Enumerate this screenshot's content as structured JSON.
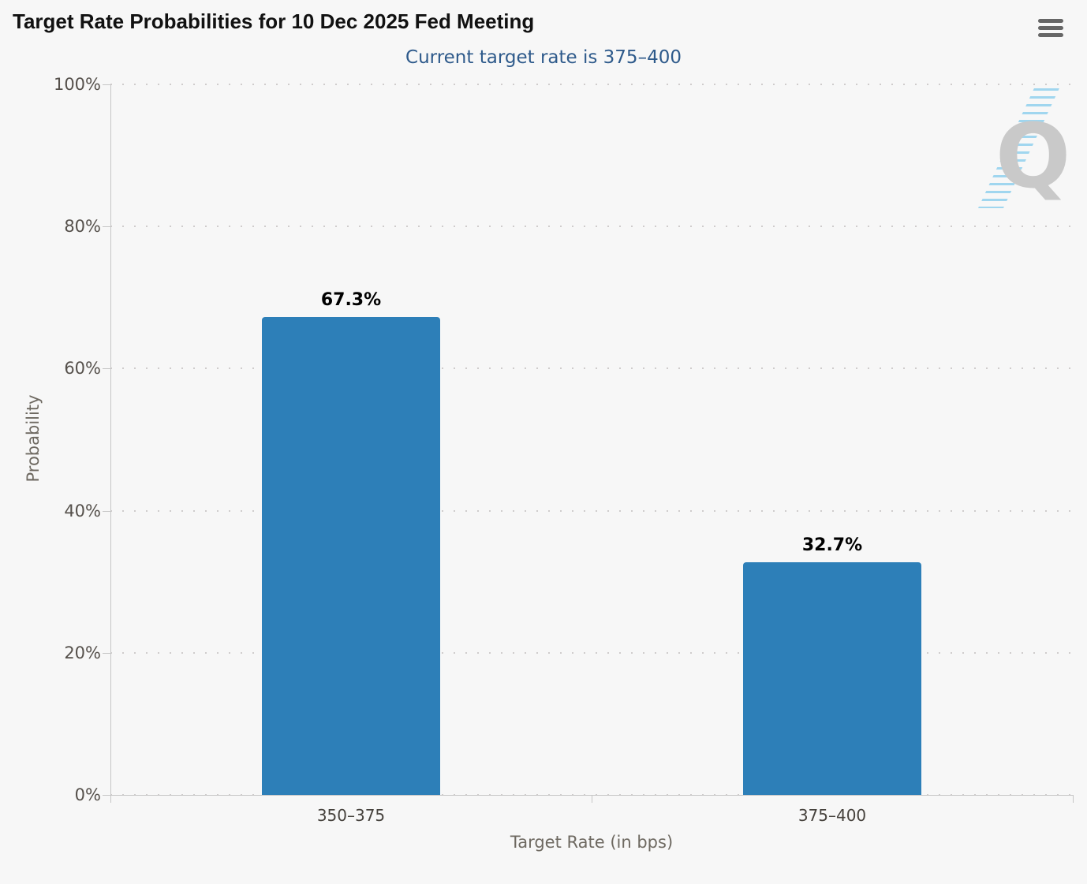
{
  "chart_data": {
    "type": "bar",
    "title": "Target Rate Probabilities for 10 Dec 2025 Fed Meeting",
    "subtitle": "Current target rate is 375–400",
    "categories": [
      "350–375",
      "375–400"
    ],
    "values": [
      67.3,
      32.7
    ],
    "data_labels": [
      "67.3%",
      "32.7%"
    ],
    "xlabel": "Target Rate (in bps)",
    "ylabel": "Probability",
    "ylim": [
      0,
      100
    ],
    "yticks": [
      0,
      20,
      40,
      60,
      80,
      100
    ],
    "ytick_labels": [
      "0%",
      "20%",
      "40%",
      "60%",
      "80%",
      "100%"
    ],
    "grid": {
      "horizontal": true,
      "style": "dotted"
    },
    "legend": "none",
    "bar_color": "#2d7fb8"
  },
  "toolbar": {
    "menu_icon": "hamburger-menu"
  },
  "watermark": {
    "letter": "Q",
    "hatch_color": "#a0d6ef",
    "letter_color": "#c9c9c9"
  },
  "colors": {
    "background": "#f7f7f7",
    "title": "#111111",
    "subtitle": "#2e5a8b",
    "bar": "#2d7fb8",
    "grid": "#cfcccc",
    "axis_line": "#c6c6c6",
    "tick_label": "#55504b",
    "axis_title": "#6e6961",
    "data_label": "#000000",
    "menu_icon": "#666666"
  }
}
